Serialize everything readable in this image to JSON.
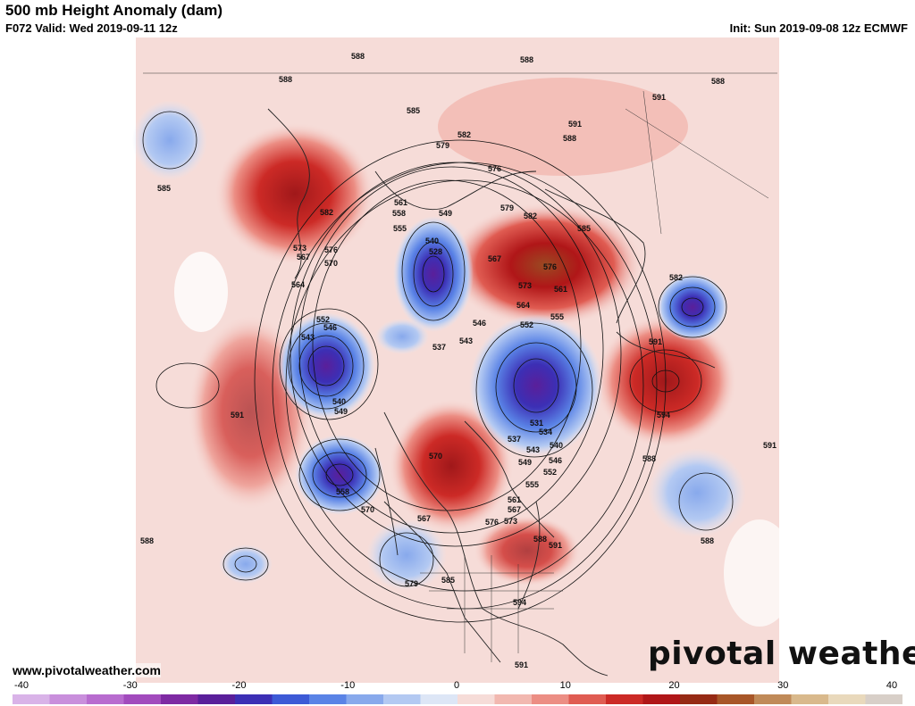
{
  "header": {
    "title": "500 mb Height Anomaly (dam)",
    "valid": "F072 Valid: Wed 2019-09-11 12z",
    "init": "Init: Sun 2019-09-08 12z ECMWF"
  },
  "branding": {
    "site": "www.pivotalweather.com",
    "logo_left": "pivot",
    "logo_right": "al weather"
  },
  "colorbar": {
    "min": -40,
    "max": 40,
    "ticks": [
      "-40",
      "-30",
      "-20",
      "-10",
      "0",
      "10",
      "20",
      "30",
      "40"
    ],
    "colors": [
      "#d9b3e8",
      "#c98fdc",
      "#b86ccf",
      "#a24bbd",
      "#7e2aa3",
      "#5a1f9a",
      "#3c2fb5",
      "#3d5ad6",
      "#5a83e6",
      "#88a9ec",
      "#b3c9f2",
      "#dde6f6",
      "#f6dcd8",
      "#f2b8b0",
      "#ec8e84",
      "#e05c52",
      "#cc2a26",
      "#b01618",
      "#962a14",
      "#a85628",
      "#c08a58",
      "#d9b98c",
      "#e9d9bc",
      "#d8cfc8"
    ]
  },
  "contour_labels": [
    "588",
    "588",
    "585",
    "588",
    "591",
    "588",
    "591",
    "588",
    "585",
    "582",
    "579",
    "576",
    "561",
    "558",
    "555",
    "549",
    "540",
    "528",
    "579",
    "582",
    "585",
    "567",
    "576",
    "573",
    "561",
    "564",
    "555",
    "552",
    "582",
    "591",
    "594",
    "588",
    "591",
    "582",
    "573",
    "576",
    "567",
    "570",
    "564",
    "552",
    "546",
    "543",
    "540",
    "549",
    "537",
    "546",
    "543",
    "531",
    "534",
    "537",
    "543",
    "540",
    "549",
    "546",
    "552",
    "555",
    "561",
    "567",
    "570",
    "573",
    "576",
    "558",
    "570",
    "567",
    "579",
    "585",
    "588",
    "591",
    "594",
    "591",
    "588",
    "591",
    "588"
  ]
}
